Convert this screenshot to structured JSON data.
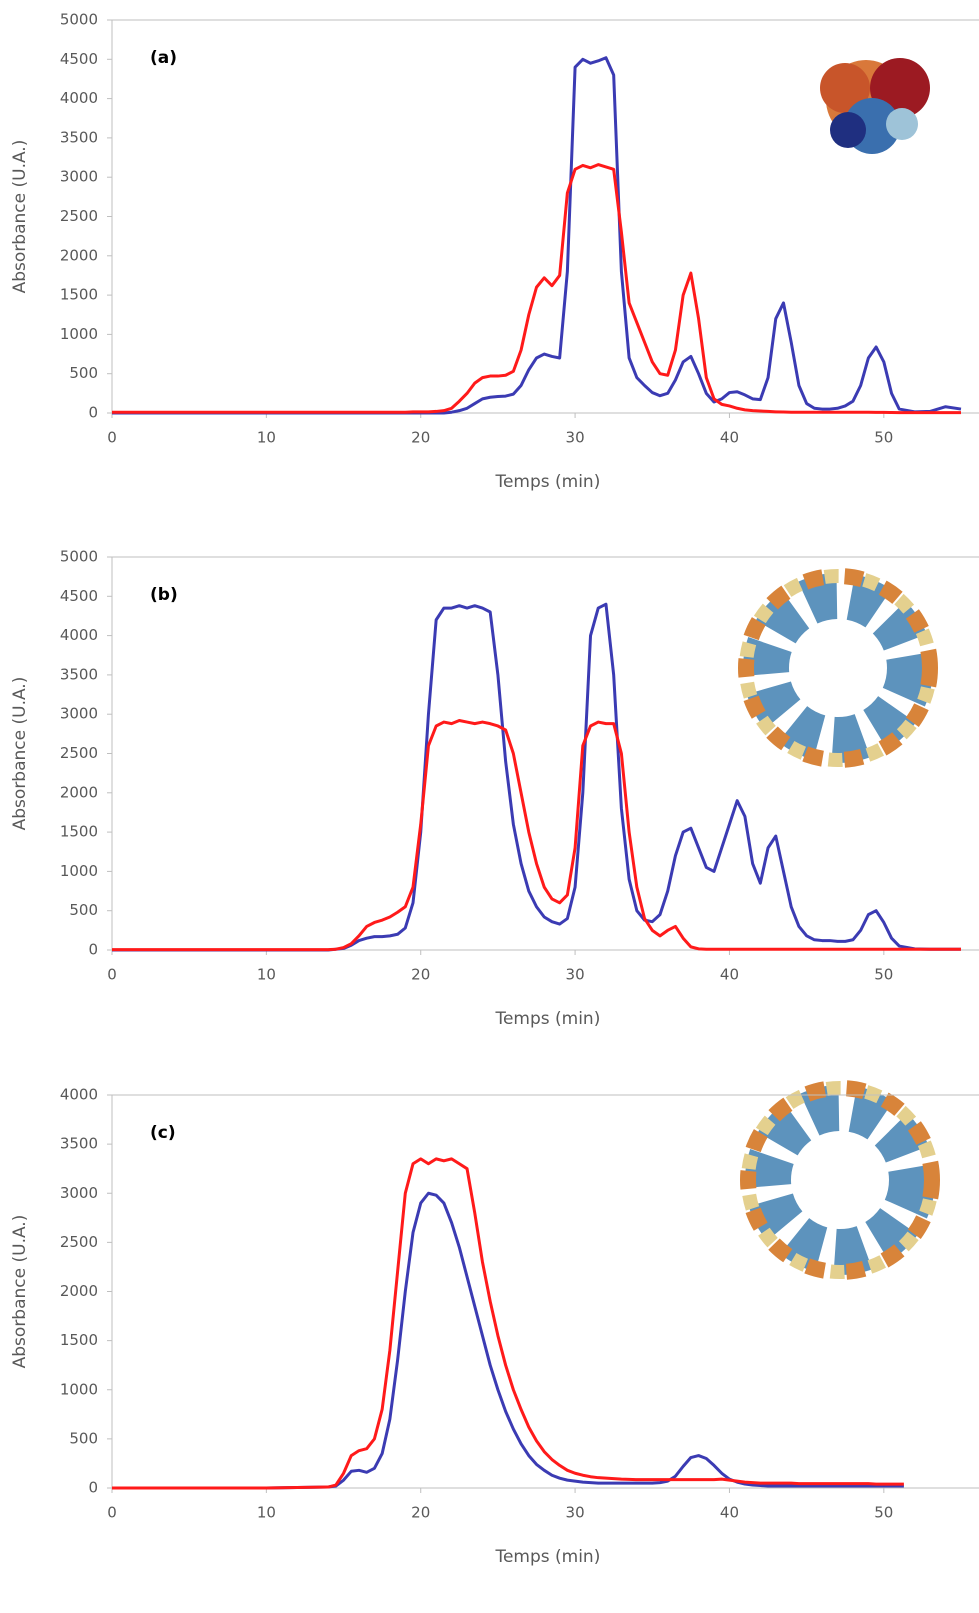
{
  "chart_data": [
    {
      "type": "line",
      "panel_label": "(a)",
      "x_label": "Temps (min)",
      "y_label": "Absorbance (U.A.)",
      "xlim": [
        0,
        55
      ],
      "xticks": [
        0,
        10,
        20,
        30,
        40,
        50
      ],
      "ylim": [
        0,
        5000
      ],
      "yticks": [
        0,
        500,
        1000,
        1500,
        2000,
        2500,
        3000,
        3500,
        4000,
        4500,
        5000
      ],
      "x": [
        0,
        10,
        14,
        14.5,
        15,
        15.5,
        16,
        16.5,
        17,
        17.5,
        18,
        18.5,
        19,
        19.5,
        20,
        20.5,
        21,
        21.5,
        22,
        22.5,
        23,
        23.5,
        24,
        24.5,
        25,
        25.5,
        26,
        26.5,
        27,
        27.5,
        28,
        28.5,
        29,
        29.5,
        30,
        30.5,
        31,
        31.5,
        32,
        32.5,
        33,
        33.5,
        34,
        34.5,
        35,
        35.5,
        36,
        36.5,
        37,
        37.5,
        38,
        38.5,
        39,
        39.5,
        40,
        40.5,
        41,
        41.5,
        42,
        42.5,
        43,
        43.5,
        44,
        44.5,
        45,
        45.5,
        46,
        46.5,
        47,
        47.5,
        48,
        48.5,
        49,
        49.5,
        50,
        50.5,
        51,
        52,
        53,
        54,
        55
      ],
      "series": [
        {
          "color": "#3b3bb3",
          "values": [
            0,
            0,
            0,
            0,
            0,
            0,
            0,
            0,
            0,
            0,
            0,
            0,
            0,
            0,
            0,
            0,
            0,
            0,
            10,
            30,
            60,
            120,
            180,
            200,
            210,
            215,
            240,
            350,
            550,
            700,
            750,
            720,
            700,
            1800,
            4400,
            4500,
            4450,
            4480,
            4520,
            4300,
            1800,
            700,
            450,
            350,
            260,
            220,
            250,
            420,
            650,
            720,
            500,
            250,
            140,
            180,
            260,
            270,
            230,
            180,
            170,
            450,
            1200,
            1400,
            900,
            350,
            120,
            60,
            50,
            50,
            60,
            90,
            150,
            350,
            700,
            840,
            650,
            250,
            50,
            15,
            20,
            80,
            50
          ]
        },
        {
          "color": "#ff1a1a",
          "values": [
            10,
            10,
            10,
            10,
            10,
            10,
            10,
            10,
            10,
            10,
            10,
            10,
            10,
            15,
            15,
            15,
            20,
            30,
            60,
            150,
            250,
            380,
            450,
            470,
            470,
            480,
            530,
            800,
            1250,
            1600,
            1720,
            1620,
            1750,
            2800,
            3100,
            3150,
            3120,
            3160,
            3130,
            3100,
            2300,
            1400,
            1150,
            900,
            650,
            500,
            480,
            800,
            1500,
            1780,
            1200,
            450,
            180,
            110,
            90,
            60,
            40,
            30,
            25,
            20,
            15,
            12,
            10,
            10,
            10,
            10,
            10,
            10,
            10,
            10,
            10,
            10,
            10,
            8,
            8,
            6,
            5,
            5,
            5,
            5,
            5
          ]
        }
      ]
    },
    {
      "type": "line",
      "panel_label": "(b)",
      "x_label": "Temps (min)",
      "y_label": "Absorbance (U.A.)",
      "xlim": [
        0,
        55
      ],
      "xticks": [
        0,
        10,
        20,
        30,
        40,
        50
      ],
      "ylim": [
        0,
        5000
      ],
      "yticks": [
        0,
        500,
        1000,
        1500,
        2000,
        2500,
        3000,
        3500,
        4000,
        4500,
        5000
      ],
      "x": [
        0,
        10,
        14,
        14.5,
        15,
        15.5,
        16,
        16.5,
        17,
        17.5,
        18,
        18.5,
        19,
        19.5,
        20,
        20.5,
        21,
        21.5,
        22,
        22.5,
        23,
        23.5,
        24,
        24.5,
        25,
        25.5,
        26,
        26.5,
        27,
        27.5,
        28,
        28.5,
        29,
        29.5,
        30,
        30.5,
        31,
        31.5,
        32,
        32.5,
        33,
        33.5,
        34,
        34.5,
        35,
        35.5,
        36,
        36.5,
        37,
        37.5,
        38,
        38.5,
        39,
        39.5,
        40,
        40.5,
        41,
        41.5,
        42,
        42.5,
        43,
        43.5,
        44,
        44.5,
        45,
        45.5,
        46,
        46.5,
        47,
        47.5,
        48,
        48.5,
        49,
        49.5,
        50,
        50.5,
        51,
        52,
        53,
        54,
        55
      ],
      "series": [
        {
          "color": "#3b3bb3",
          "values": [
            0,
            0,
            0,
            10,
            20,
            60,
            120,
            150,
            170,
            170,
            180,
            200,
            280,
            600,
            1500,
            3000,
            4200,
            4350,
            4350,
            4380,
            4350,
            4380,
            4350,
            4300,
            3500,
            2400,
            1600,
            1100,
            750,
            550,
            420,
            360,
            330,
            400,
            800,
            2000,
            4000,
            4350,
            4400,
            3500,
            1800,
            900,
            500,
            380,
            360,
            450,
            750,
            1200,
            1500,
            1550,
            1300,
            1050,
            1000,
            1300,
            1600,
            1900,
            1700,
            1100,
            850,
            1300,
            1450,
            1000,
            550,
            300,
            180,
            130,
            120,
            120,
            110,
            110,
            130,
            250,
            450,
            500,
            350,
            150,
            50,
            15,
            10,
            10,
            10
          ]
        },
        {
          "color": "#ff1a1a",
          "values": [
            5,
            5,
            5,
            10,
            30,
            80,
            180,
            300,
            350,
            380,
            420,
            480,
            550,
            800,
            1600,
            2600,
            2850,
            2900,
            2880,
            2920,
            2900,
            2880,
            2900,
            2880,
            2850,
            2800,
            2500,
            2000,
            1500,
            1100,
            800,
            650,
            600,
            700,
            1300,
            2600,
            2850,
            2900,
            2880,
            2880,
            2500,
            1500,
            800,
            400,
            250,
            180,
            250,
            300,
            150,
            40,
            15,
            10,
            10,
            10,
            10,
            10,
            10,
            10,
            10,
            10,
            10,
            10,
            10,
            10,
            10,
            10,
            10,
            10,
            10,
            10,
            10,
            10,
            10,
            10,
            10,
            10,
            10,
            10,
            10,
            10,
            10
          ]
        }
      ]
    },
    {
      "type": "line",
      "panel_label": "(c)",
      "x_label": "Temps (min)",
      "y_label": "Absorbance (U.A.)",
      "xlim": [
        0,
        55
      ],
      "xticks": [
        0,
        10,
        20,
        30,
        40,
        50
      ],
      "ylim": [
        0,
        4000
      ],
      "yticks": [
        0,
        500,
        1000,
        1500,
        2000,
        2500,
        3000,
        3500,
        4000
      ],
      "x": [
        0,
        10,
        14,
        14.5,
        15,
        15.5,
        16,
        16.5,
        17,
        17.5,
        18,
        18.5,
        19,
        19.5,
        20,
        20.5,
        21,
        21.5,
        22,
        22.5,
        23,
        23.5,
        24,
        24.5,
        25,
        25.5,
        26,
        26.5,
        27,
        27.5,
        28,
        28.5,
        29,
        29.5,
        30,
        30.5,
        31,
        31.5,
        32,
        32.5,
        33,
        33.5,
        34,
        34.5,
        35,
        35.5,
        36,
        36.5,
        37,
        37.5,
        38,
        38.5,
        39,
        39.5,
        40,
        40.5,
        41,
        41.5,
        42,
        42.5,
        43,
        43.5,
        44,
        44.5,
        45,
        45.5,
        46,
        46.5,
        47,
        47.5,
        48,
        48.5,
        49,
        49.5,
        50,
        50.5,
        51,
        51.3
      ],
      "series": [
        {
          "color": "#3b3bb3",
          "values": [
            0,
            0,
            10,
            20,
            80,
            170,
            180,
            160,
            200,
            350,
            700,
            1300,
            2000,
            2600,
            2900,
            3000,
            2980,
            2900,
            2700,
            2450,
            2150,
            1850,
            1550,
            1250,
            1000,
            780,
            600,
            450,
            330,
            240,
            180,
            130,
            100,
            80,
            70,
            60,
            55,
            50,
            50,
            50,
            50,
            50,
            50,
            50,
            50,
            55,
            70,
            120,
            220,
            310,
            330,
            300,
            230,
            150,
            90,
            60,
            40,
            30,
            25,
            20,
            20,
            20,
            20,
            20,
            20,
            20,
            20,
            20,
            20,
            20,
            20,
            20,
            20,
            20,
            20,
            20,
            20,
            20
          ]
        },
        {
          "color": "#ff1a1a",
          "values": [
            0,
            0,
            10,
            30,
            150,
            330,
            380,
            400,
            500,
            800,
            1400,
            2200,
            3000,
            3300,
            3350,
            3300,
            3350,
            3330,
            3350,
            3300,
            3250,
            2800,
            2300,
            1900,
            1550,
            1250,
            1000,
            800,
            620,
            480,
            370,
            290,
            230,
            180,
            150,
            130,
            115,
            105,
            100,
            95,
            90,
            88,
            85,
            85,
            85,
            85,
            85,
            85,
            85,
            85,
            85,
            85,
            85,
            90,
            80,
            70,
            60,
            55,
            50,
            50,
            50,
            50,
            50,
            45,
            45,
            45,
            45,
            45,
            45,
            45,
            45,
            45,
            45,
            40,
            40,
            40,
            40,
            40
          ]
        }
      ]
    }
  ]
}
